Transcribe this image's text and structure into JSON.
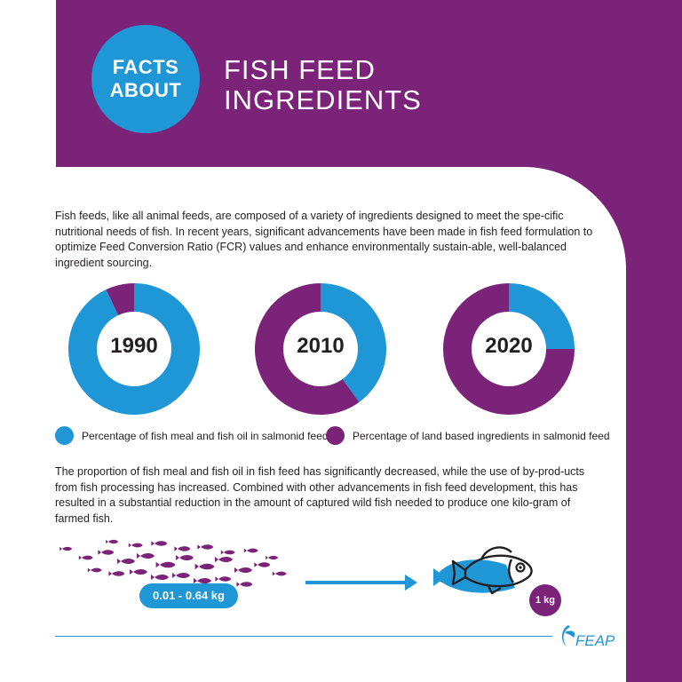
{
  "header": {
    "badge_line1": "FACTS",
    "badge_line2": "ABOUT",
    "title_line1": "FISH FEED",
    "title_line2": "INGREDIENTS"
  },
  "intro": "Fish feeds, like all animal feeds, are composed of a variety of ingredients designed to meet the spe-cific nutritional needs of fish. In recent years, significant advancements have been made in fish feed formulation to optimize Feed Conversion Ratio (FCR) values and enhance environmentally sustain-able, well-balanced ingredient sourcing.",
  "chart_data": {
    "type": "pie",
    "charts": [
      {
        "label": "1990",
        "fish_meal_oil": 0.93,
        "land_based": 0.07
      },
      {
        "label": "2010",
        "fish_meal_oil": 0.4,
        "land_based": 0.6
      },
      {
        "label": "2020",
        "fish_meal_oil": 0.25,
        "land_based": 0.75
      }
    ],
    "legend": [
      {
        "label": "Percentage of fish meal and fish oil in salmonid feed",
        "color": "#1f97d6"
      },
      {
        "label": "Percentage of land based ingredients in salmonid feed",
        "color": "#7a2378"
      }
    ]
  },
  "summary": "The proportion of fish meal and fish oil in fish feed has significantly decreased, while the use of by-prod-ucts from fish processing has increased. Combined with other advancements in fish feed development, this has resulted in a substantial reduction in the amount of captured wild fish needed to produce one kilo-gram of farmed fish.",
  "conversion": {
    "wild_fish_amount": "0.01 - 0.64 kg",
    "farmed_fish_amount": "1 kg"
  },
  "colors": {
    "purple": "#7a2378",
    "blue": "#1f97d6"
  },
  "logo_text": "FEAP"
}
